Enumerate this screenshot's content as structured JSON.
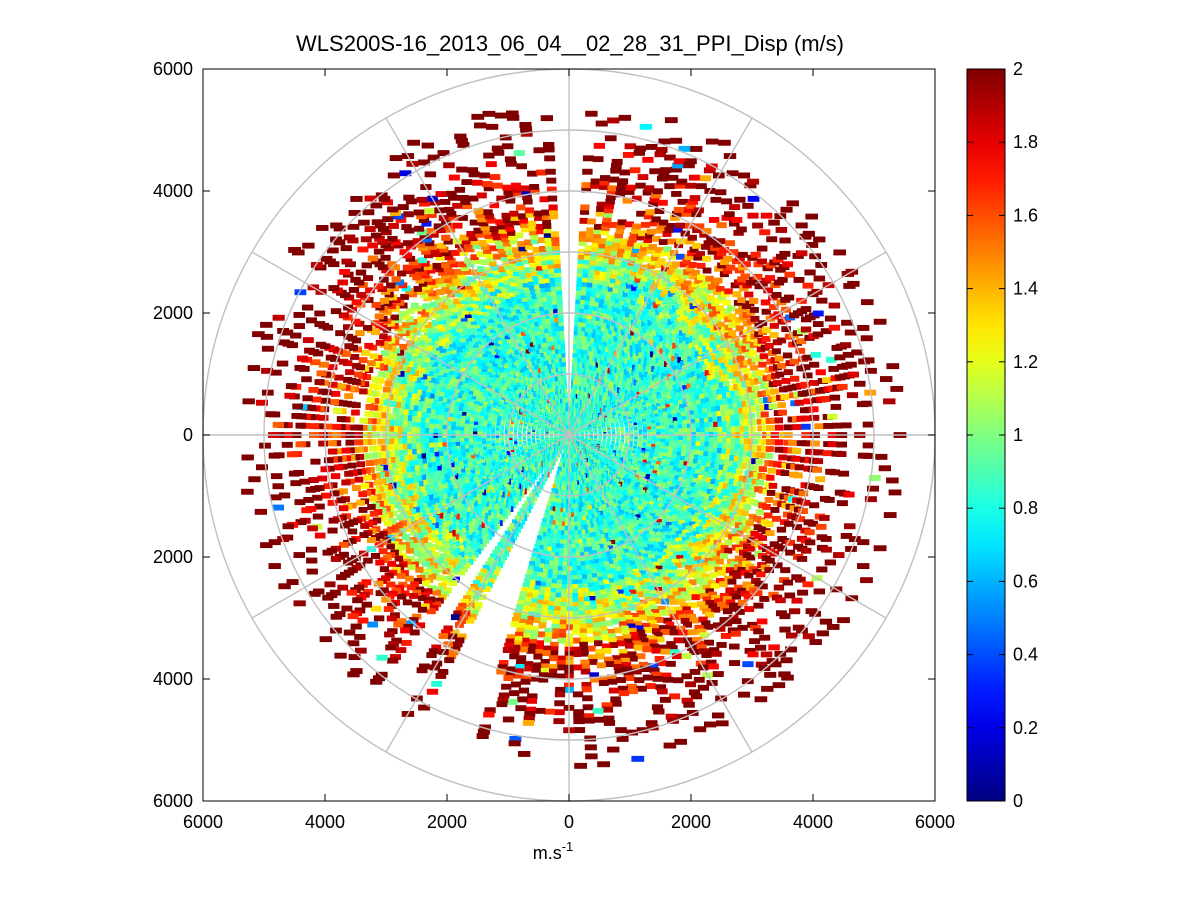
{
  "chart_data": {
    "type": "heatmap",
    "subtype": "polar-ppi",
    "title": "WLS200S-16_2013_06_04__02_28_31_PPI_Disp (m/s)",
    "xlabel": "m.s",
    "xlabel_superscript": "-1",
    "ylabel": "",
    "xlim": [
      -6000,
      6000
    ],
    "ylim": [
      -6000,
      6000
    ],
    "x_ticks": [
      "6000",
      "4000",
      "2000",
      "0",
      "2000",
      "4000",
      "6000"
    ],
    "y_ticks": [
      "6000",
      "4000",
      "2000",
      "0",
      "2000",
      "4000",
      "6000"
    ],
    "grid": true,
    "polar_grid": {
      "ring_radii": [
        1000,
        2000,
        3000,
        4000,
        5000,
        6000
      ],
      "spoke_angles_deg": [
        0,
        30,
        60,
        90,
        120,
        150,
        180,
        210,
        240,
        270,
        300,
        330
      ]
    },
    "data_description": {
      "max_range": 5500,
      "inner_mean": 0.85,
      "outer_value": 2.0,
      "gaps_azimuth_deg": [
        [
          358,
          2
        ],
        [
          198,
          206
        ],
        [
          213,
          217
        ]
      ]
    },
    "colorbar": {
      "colormap": "jet",
      "clim": [
        0,
        2
      ],
      "tick_labels": [
        "0",
        "0.2",
        "0.4",
        "0.6",
        "0.8",
        "1",
        "1.2",
        "1.4",
        "1.6",
        "1.8",
        "2"
      ]
    }
  }
}
